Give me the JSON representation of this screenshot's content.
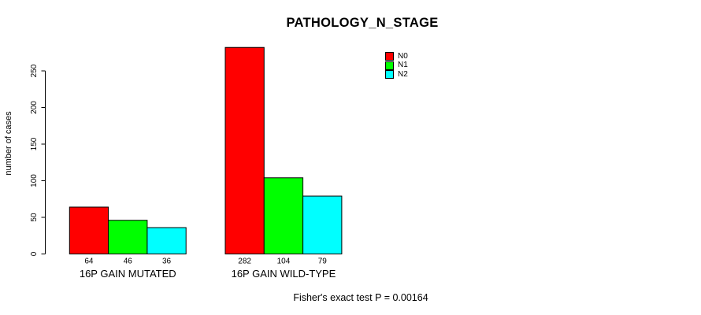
{
  "chart_data": {
    "type": "bar",
    "title": "PATHOLOGY_N_STAGE",
    "xlabel": "",
    "ylabel": "number of cases",
    "categories": [
      "16P GAIN MUTATED",
      "16P GAIN WILD-TYPE"
    ],
    "series": [
      {
        "name": "N0",
        "color": "#ff0000",
        "values": [
          64,
          282
        ]
      },
      {
        "name": "N1",
        "color": "#00ff00",
        "values": [
          46,
          104
        ]
      },
      {
        "name": "N2",
        "color": "#00ffff",
        "values": [
          36,
          79
        ]
      }
    ],
    "yticks": [
      0,
      50,
      100,
      150,
      200,
      250
    ],
    "ylim": [
      0,
      283
    ],
    "bar_value_labels_shown": true,
    "grid": false,
    "legend": {
      "position": "top-right",
      "entries": [
        "N0",
        "N1",
        "N2"
      ]
    },
    "annotation": "Fisher's exact test P = 0.00164"
  }
}
